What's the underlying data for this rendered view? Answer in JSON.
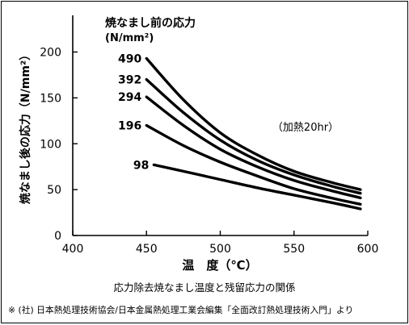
{
  "chart_data": {
    "type": "line",
    "title": "焼なまし前の応力",
    "title_unit": "(N/mm²)",
    "xlabel": "温　度（℃）",
    "ylabel": "焼なまし後の応力（N/mm²）",
    "annotation": "（加熱20hr）",
    "xlim": [
      400,
      600
    ],
    "ylim": [
      0,
      240
    ],
    "xticks": [
      "400",
      "450",
      "500",
      "550",
      "600"
    ],
    "yticks": [
      "0",
      "50",
      "100",
      "150",
      "200"
    ],
    "grid": false,
    "series": [
      {
        "name": "490",
        "x": [
          450,
          475,
          500,
          525,
          550,
          575,
          595
        ],
        "y": [
          193,
          148,
          112,
          88,
          70,
          58,
          50
        ]
      },
      {
        "name": "392",
        "x": [
          450,
          475,
          500,
          525,
          550,
          575,
          595
        ],
        "y": [
          170,
          134,
          104,
          82,
          66,
          54,
          46
        ]
      },
      {
        "name": "294",
        "x": [
          450,
          475,
          500,
          525,
          550,
          575,
          595
        ],
        "y": [
          151,
          120,
          94,
          75,
          60,
          49,
          41
        ]
      },
      {
        "name": "196",
        "x": [
          450,
          475,
          500,
          525,
          550,
          575,
          595
        ],
        "y": [
          120,
          98,
          80,
          65,
          51,
          41,
          34
        ]
      },
      {
        "name": "98",
        "x": [
          455,
          475,
          500,
          525,
          550,
          575,
          595
        ],
        "y": [
          77,
          70,
          61,
          52,
          44,
          36,
          29
        ]
      }
    ]
  },
  "caption": "応力除去焼なまし温度と残留応力の関係",
  "source": "※ (社) 日本熱処理技術協会/日本金属熱処理工業会編集「全面改訂熱処理技術入門」より"
}
